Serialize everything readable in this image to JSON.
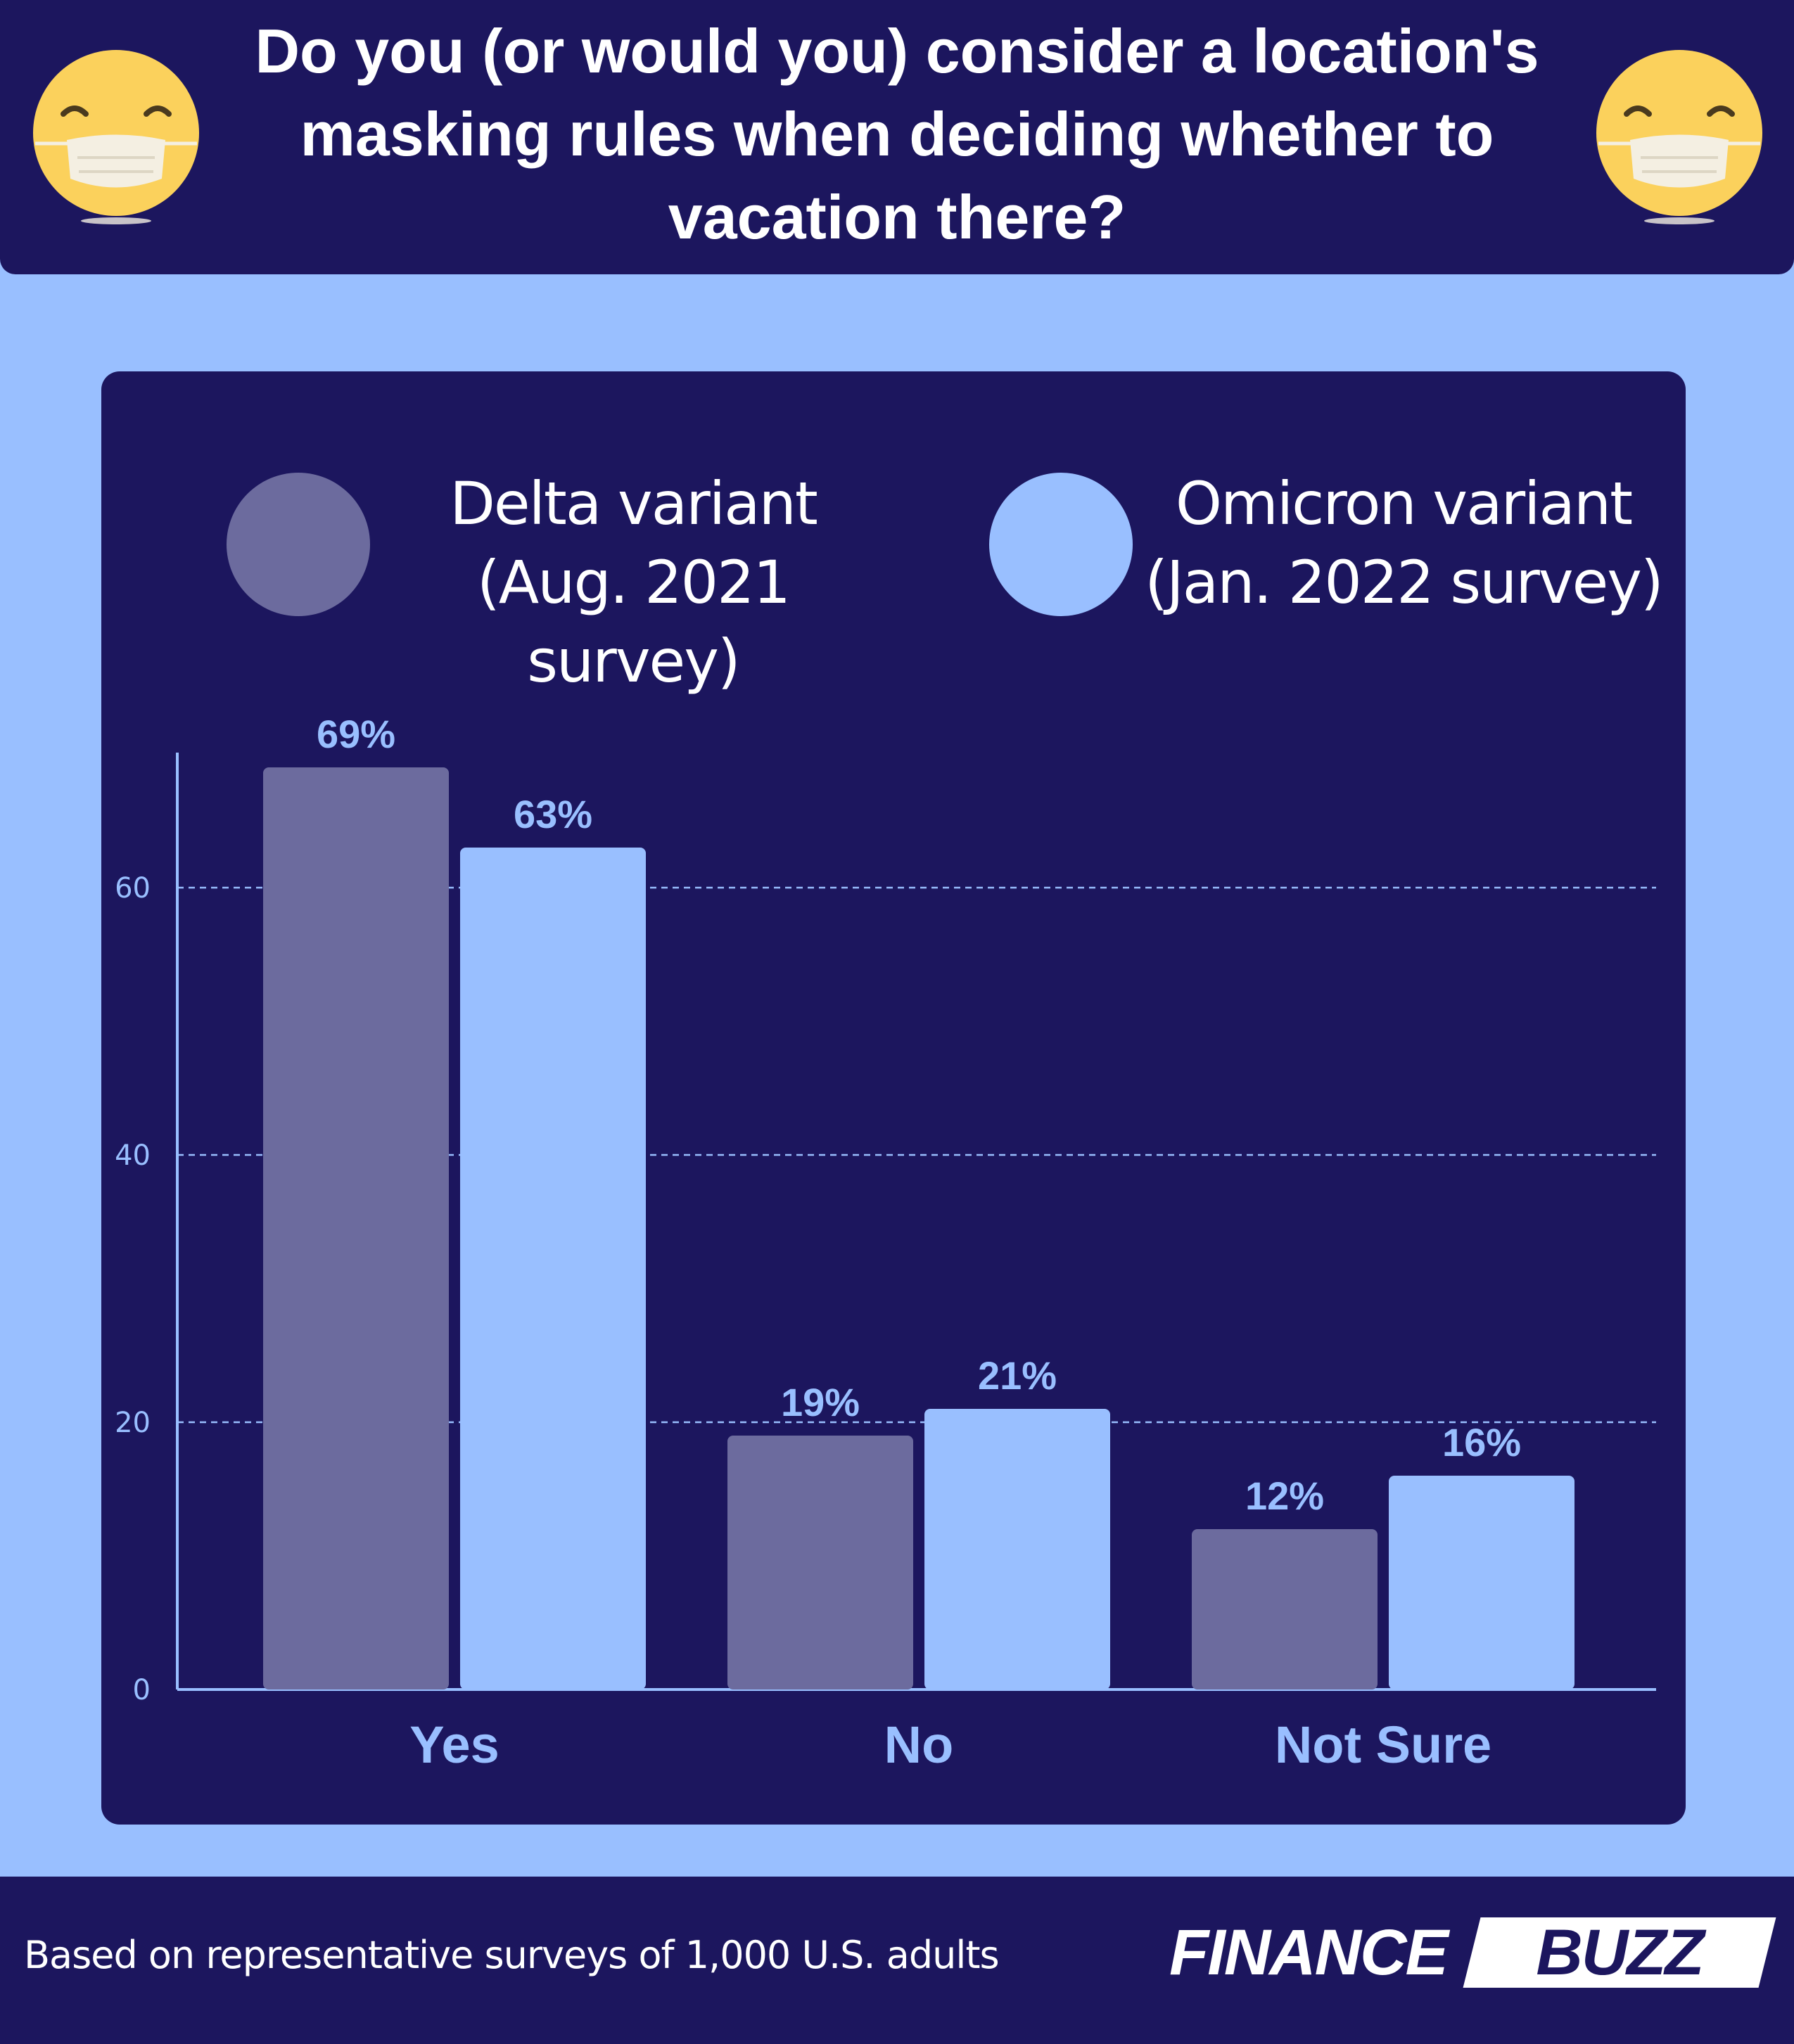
{
  "title": "Do you (or would you) consider a location's masking rules when deciding whether to vacation there?",
  "colors": {
    "navy": "#1c165e",
    "background": "#99bfff",
    "delta": "#6c6b9e",
    "omicron": "#99bfff",
    "axis": "#99bfff",
    "emoji_face": "#fbd15c",
    "emoji_mask": "#f4efe2"
  },
  "icons": {
    "left": "masked-face-emoji-icon",
    "right": "masked-face-emoji-icon"
  },
  "legend": {
    "delta": {
      "line1": "Delta variant",
      "line2": "(Aug. 2021 survey)"
    },
    "omicron": {
      "line1": "Omicron variant",
      "line2": "(Jan. 2022 survey)"
    }
  },
  "chart_data": {
    "type": "bar",
    "title": "Do you (or would you) consider a location's masking rules when deciding whether to vacation there?",
    "categories": [
      "Yes",
      "No",
      "Not Sure"
    ],
    "series": [
      {
        "name": "Delta variant (Aug. 2021 survey)",
        "values": [
          69,
          19,
          12
        ],
        "labels": [
          "69%",
          "19%",
          "12%"
        ]
      },
      {
        "name": "Omicron variant (Jan. 2022 survey)",
        "values": [
          63,
          21,
          16
        ],
        "labels": [
          "63%",
          "21%",
          "16%"
        ]
      }
    ],
    "yticks": [
      0,
      20,
      40,
      60
    ],
    "ylim": [
      0,
      70
    ],
    "grid": true,
    "xlabel": "",
    "ylabel": "",
    "legend_position": "top"
  },
  "footer": {
    "source": "Based on representative surveys of 1,000 U.S. adults",
    "logo_part1": "FINANCE",
    "logo_part2": "BUZZ"
  }
}
